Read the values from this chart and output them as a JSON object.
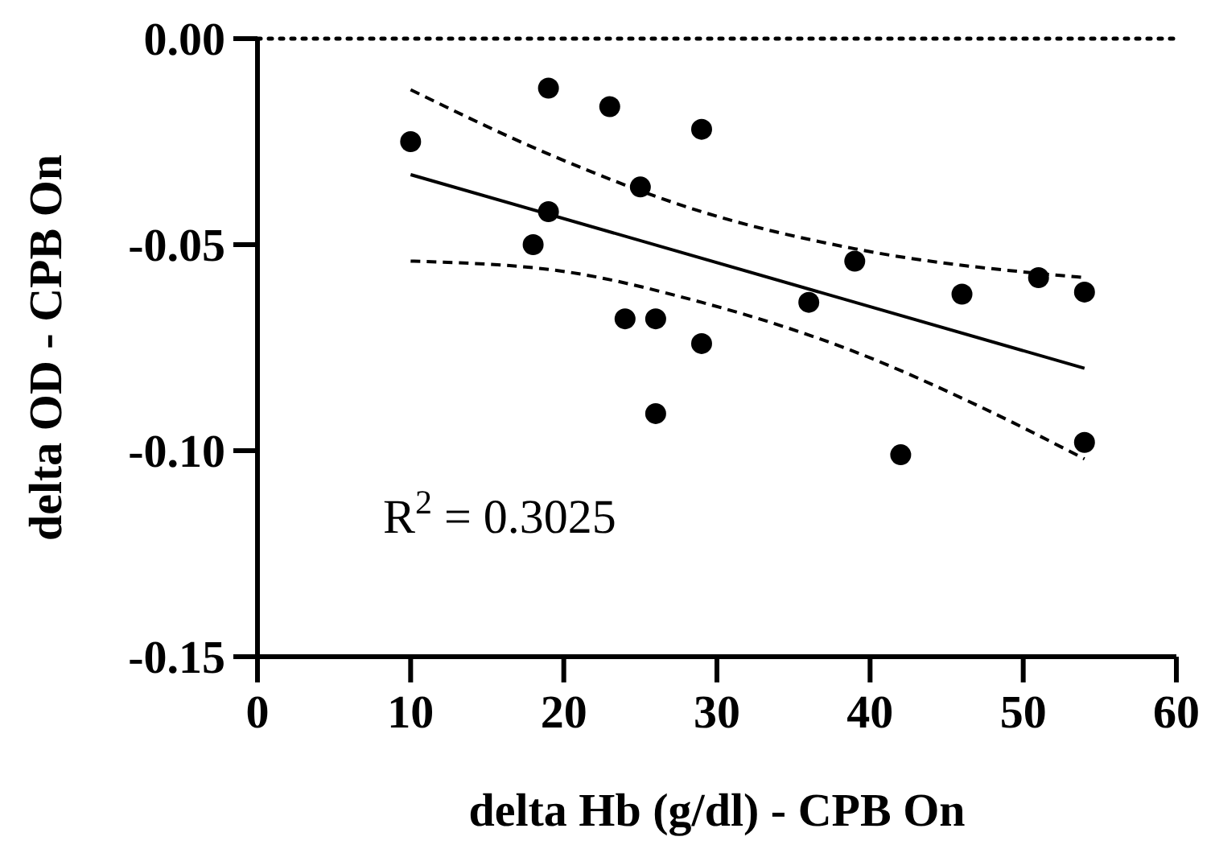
{
  "chart_data": {
    "type": "scatter",
    "xlabel": "delta Hb (g/dl) - CPB On",
    "ylabel": "delta OD - CPB On",
    "xlim": [
      0,
      60
    ],
    "xticks": [
      0,
      10,
      20,
      30,
      40,
      50,
      60
    ],
    "ylim": [
      -0.15,
      0
    ],
    "yticks": [
      {
        "value": -0.15,
        "label": "-0.15"
      },
      {
        "value": -0.1,
        "label": "-0.10"
      },
      {
        "value": -0.05,
        "label": "-0.05"
      },
      {
        "value": 0,
        "label": "0.00"
      }
    ],
    "series": [
      {
        "color": "#000000",
        "marker": "circle",
        "x": [
          10,
          19,
          23,
          29,
          25,
          19,
          18,
          39,
          36,
          46,
          51,
          54,
          24,
          26,
          29,
          26,
          42,
          54
        ],
        "values": [
          -0.025,
          -0.012,
          -0.0165,
          -0.022,
          -0.036,
          -0.042,
          -0.05,
          -0.054,
          -0.064,
          -0.062,
          -0.058,
          -0.0615,
          -0.068,
          -0.068,
          -0.074,
          -0.091,
          -0.101,
          -0.098
        ]
      },
      {
        "type": "line",
        "color": "#000000",
        "line_style": "solid",
        "x": [
          10,
          54
        ],
        "values": [
          -0.033,
          -0.08
        ]
      },
      {
        "type": "line",
        "color": "#000000",
        "line_style": "dashed",
        "x": [
          10,
          19,
          29,
          39,
          54
        ],
        "values": [
          -0.0124,
          -0.028,
          -0.042,
          -0.051,
          -0.058
        ]
      },
      {
        "type": "line",
        "color": "#000000",
        "line_style": "dashed",
        "x": [
          10,
          19,
          29,
          39,
          47,
          54
        ],
        "values": [
          -0.054,
          -0.056,
          -0.064,
          -0.076,
          -0.089,
          -0.102
        ]
      }
    ],
    "ref_lines": [
      {
        "axis": "y",
        "value": 0,
        "line_style": "dotted",
        "color": "#000000"
      }
    ],
    "annotations": [
      "R$^{2}$ = 0.3025"
    ]
  }
}
